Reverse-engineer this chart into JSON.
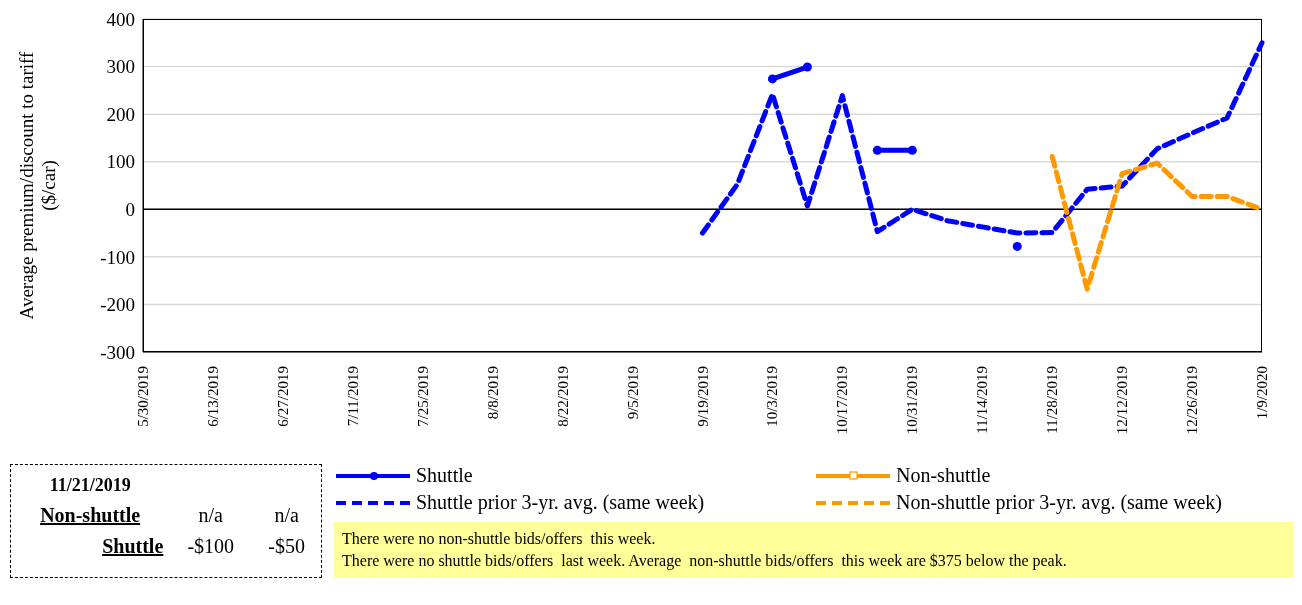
{
  "chart_data": {
    "type": "line",
    "categories": [
      "5/30/2019",
      null,
      "6/13/2019",
      null,
      "6/27/2019",
      null,
      "7/11/2019",
      null,
      "7/25/2019",
      null,
      "8/8/2019",
      null,
      "8/22/2019",
      null,
      "9/5/2019",
      null,
      "9/19/2019",
      null,
      "10/3/2019",
      null,
      "10/17/2019",
      null,
      "10/31/2019",
      null,
      "11/14/2019",
      null,
      "11/28/2019",
      null,
      "12/12/2019",
      null,
      "12/26/2019",
      null,
      "1/9/2020"
    ],
    "ylabel": "Average premium/discount to tariff ($/car)",
    "ylim": [
      -300,
      400
    ],
    "yticks": [
      -300,
      -200,
      -100,
      0,
      100,
      200,
      300,
      400
    ],
    "grid": "y",
    "legend": "bottom",
    "ref_lines": [
      {
        "axis": "y",
        "value": 0,
        "color": "#000000"
      }
    ],
    "series": [
      {
        "name": "Shuttle",
        "color": "#0000ff",
        "marker": "circle",
        "line_style": "solid",
        "values": [
          null,
          null,
          null,
          null,
          null,
          null,
          null,
          null,
          null,
          null,
          null,
          null,
          null,
          null,
          null,
          null,
          null,
          null,
          274,
          299,
          null,
          124,
          124,
          null,
          null,
          -78,
          null,
          null,
          null,
          null,
          null,
          null,
          null
        ]
      },
      {
        "name": "Non-shuttle",
        "color": "#ff9900",
        "marker": "square",
        "line_style": "solid",
        "values": [
          null,
          null,
          null,
          null,
          null,
          null,
          null,
          null,
          null,
          null,
          null,
          null,
          null,
          null,
          null,
          null,
          null,
          null,
          null,
          null,
          null,
          null,
          null,
          null,
          null,
          null,
          null,
          null,
          null,
          null,
          null,
          null,
          null
        ]
      },
      {
        "name": "Shuttle prior 3-yr. avg. (same week)",
        "color": "#0000ff",
        "marker": "none",
        "line_style": "dashed",
        "values": [
          null,
          null,
          null,
          null,
          null,
          null,
          null,
          null,
          null,
          null,
          null,
          null,
          null,
          null,
          null,
          null,
          -50,
          53,
          242,
          7,
          239,
          -47,
          0,
          -24,
          -37,
          -50,
          -49,
          42,
          49,
          127,
          160,
          192,
          350
        ]
      },
      {
        "name": "Non-shuttle prior 3-yr. avg. (same week)",
        "color": "#ff9900",
        "marker": "none",
        "line_style": "dashed",
        "values": [
          null,
          null,
          null,
          null,
          null,
          null,
          null,
          null,
          null,
          null,
          null,
          null,
          null,
          null,
          null,
          null,
          null,
          null,
          null,
          null,
          null,
          null,
          null,
          null,
          null,
          null,
          111,
          -168,
          75,
          97,
          27,
          27,
          0
        ]
      }
    ],
    "annotations": [
      "11/21/2019",
      "Non-shuttle",
      "n/a",
      "n/a",
      "Shuttle",
      "-$100",
      "-$50",
      "There were no non-shuttle bids/offers  this week.",
      "There were no shuttle bids/offers  last week. Average  non-shuttle bids/offers  this week are $375 below the peak."
    ]
  }
}
